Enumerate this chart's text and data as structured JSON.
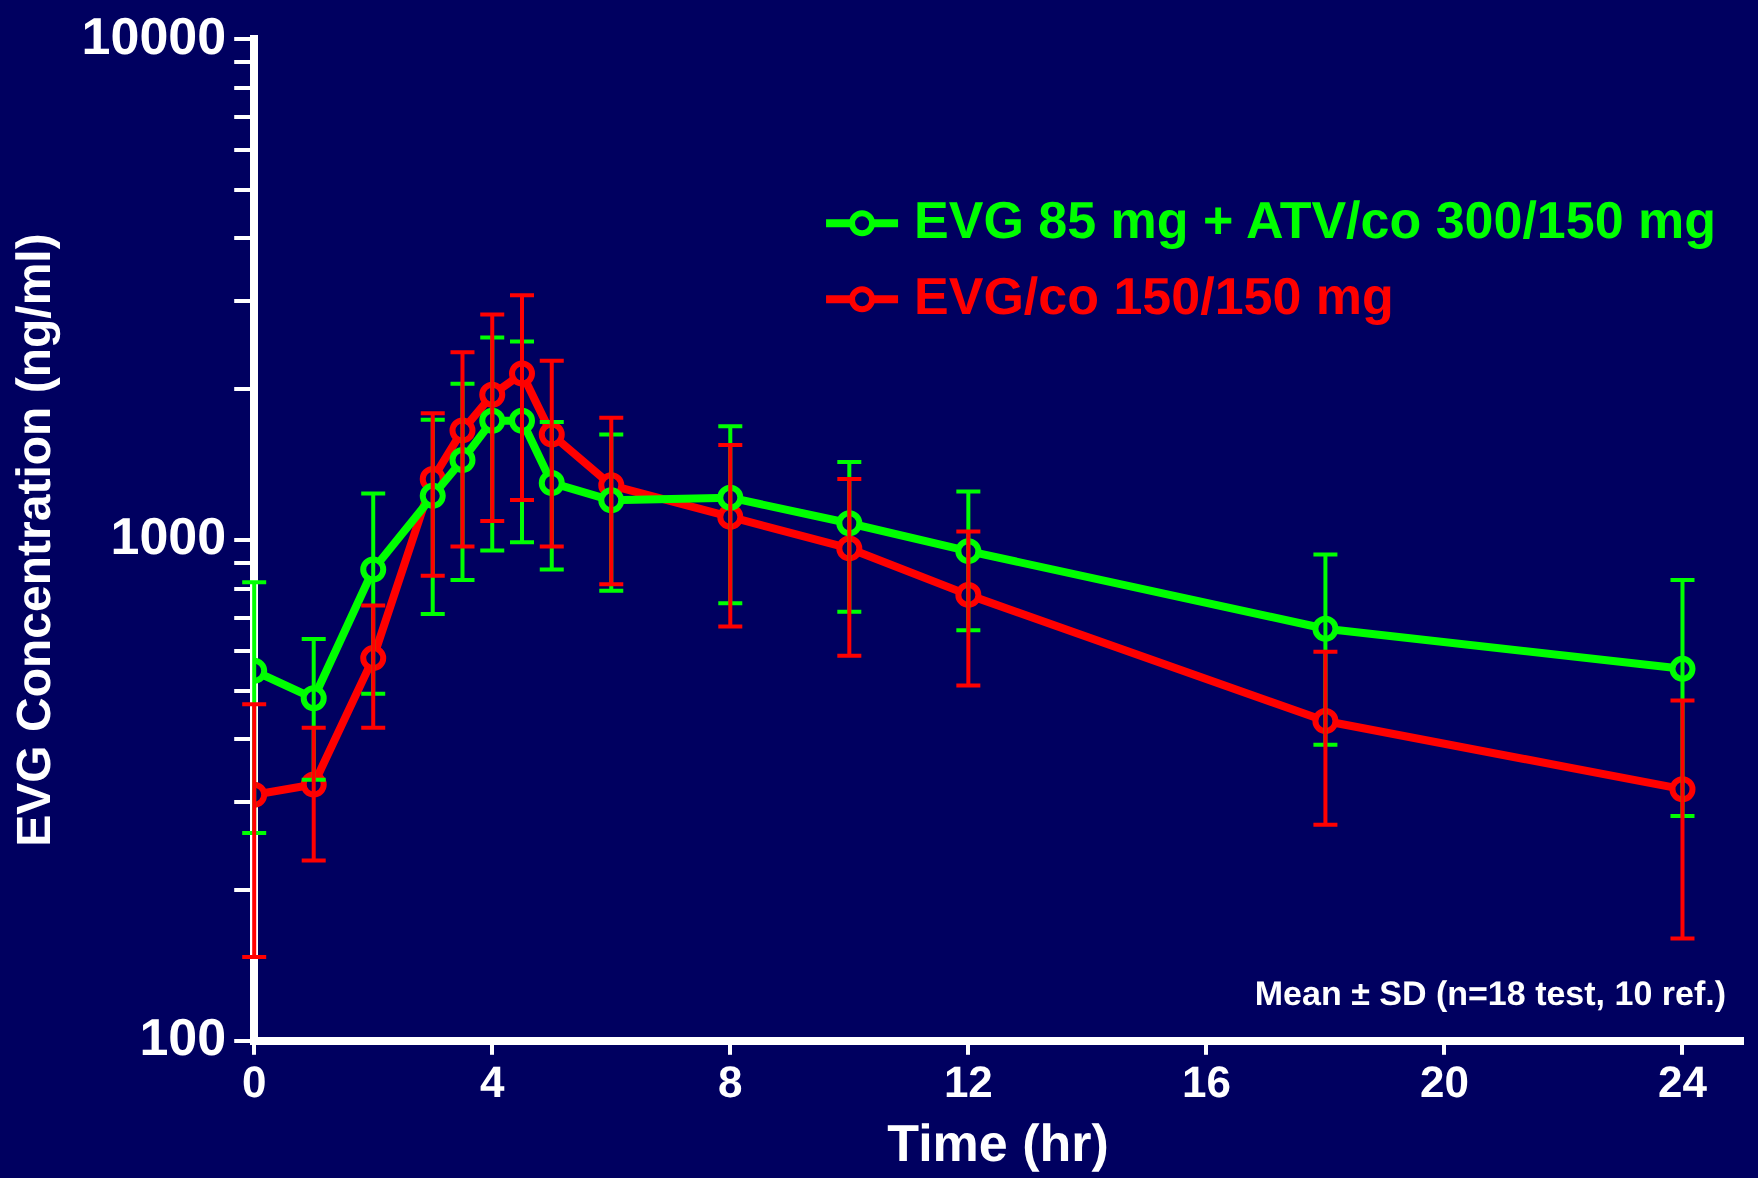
{
  "chart_data": {
    "type": "line",
    "xlabel": "Time (hr)",
    "ylabel": "EVG Concentration (ng/ml)",
    "log": "y",
    "grid": false,
    "legend": "top right",
    "marker": "circle",
    "line_style": "solid",
    "x": [
      0,
      1,
      2,
      3,
      3.5,
      4,
      4.5,
      5,
      6,
      8,
      10,
      12,
      18,
      24
    ],
    "xlim": [
      0,
      25
    ],
    "xticks": [
      0,
      4,
      8,
      12,
      16,
      20,
      24
    ],
    "ylim": [
      100,
      10000
    ],
    "yticks": [
      100,
      {
        "value": 200,
        "label": null
      },
      {
        "value": 300,
        "label": null
      },
      {
        "value": 400,
        "label": null
      },
      {
        "value": 500,
        "label": null
      },
      {
        "value": 600,
        "label": null
      },
      {
        "value": 700,
        "label": null
      },
      {
        "value": 800,
        "label": null
      },
      {
        "value": 900,
        "label": null
      },
      1000,
      {
        "value": 2000,
        "label": null
      },
      {
        "value": 3000,
        "label": null
      },
      {
        "value": 4000,
        "label": null
      },
      {
        "value": 5000,
        "label": null
      },
      {
        "value": 6000,
        "label": null
      },
      {
        "value": 7000,
        "label": null
      },
      {
        "value": 8000,
        "label": null
      },
      {
        "value": 9000,
        "label": null
      },
      10000
    ],
    "series": [
      {
        "name": "EVG 85 mg + ATV/co 300/150 mg",
        "color": "#00ff00",
        "values": [
          548,
          483,
          873,
          1225,
          1445,
          1730,
          1730,
          1300,
          1200,
          1215,
          1080,
          950,
          665,
          553
        ],
        "errors": [
          [
            260,
            823
          ],
          [
            332,
            634
          ],
          [
            493,
            1238
          ],
          [
            712,
            1738
          ],
          [
            832,
            2050
          ],
          [
            953,
            2536
          ],
          [
            990,
            2490
          ],
          [
            873,
            1720
          ],
          [
            792,
            1624
          ],
          [
            748,
            1688
          ],
          [
            719,
            1431
          ],
          [
            660,
            1250
          ],
          [
            390,
            935
          ],
          [
            281,
            832
          ]
        ]
      },
      {
        "name": "EVG/co 150/150 mg",
        "color": "#ff0000",
        "values": [
          310,
          325,
          581,
          1324,
          1655,
          1950,
          2150,
          1624,
          1286,
          1112,
          962,
          777,
          435,
          318
        ],
        "errors": [
          [
            147,
            470
          ],
          [
            229,
            422
          ],
          [
            422,
            740
          ],
          [
            848,
            1790
          ],
          [
            971,
            2370
          ],
          [
            1091,
            2820
          ],
          [
            1202,
            3080
          ],
          [
            971,
            2280
          ],
          [
            816,
            1755
          ],
          [
            672,
            1547
          ],
          [
            587,
            1324
          ],
          [
            512,
            1040
          ],
          [
            270,
            598
          ],
          [
            160,
            478
          ]
        ]
      }
    ],
    "annotations": [
      "Mean ± SD (n=18 test, 10 ref.)"
    ]
  }
}
